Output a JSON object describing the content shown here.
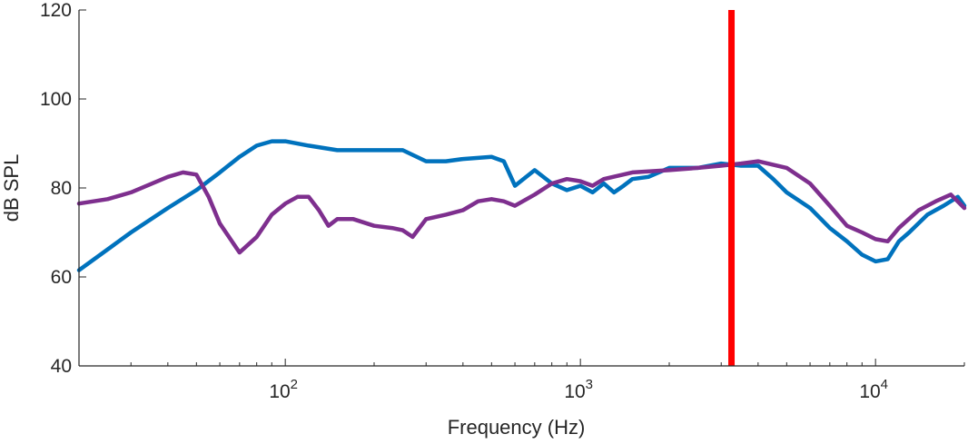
{
  "chart_data": {
    "type": "line",
    "title": "",
    "xlabel": "Frequency (Hz)",
    "ylabel": "dB SPL",
    "x_scale": "log",
    "xlim": [
      20,
      20000
    ],
    "ylim": [
      40,
      120
    ],
    "grid": false,
    "y_ticks": [
      40,
      60,
      80,
      100,
      120
    ],
    "x_ticks": [
      {
        "base": "10",
        "exp": "2",
        "value": 100
      },
      {
        "base": "10",
        "exp": "3",
        "value": 1000
      },
      {
        "base": "10",
        "exp": "4",
        "value": 10000
      }
    ],
    "series": [
      {
        "color": "#0072bd",
        "x": [
          20,
          30,
          40,
          50,
          60,
          70,
          80,
          90,
          100,
          120,
          150,
          200,
          250,
          300,
          350,
          400,
          500,
          550,
          600,
          700,
          800,
          900,
          1000,
          1100,
          1200,
          1300,
          1400,
          1500,
          1700,
          2000,
          2500,
          3000,
          3500,
          4000,
          4500,
          5000,
          6000,
          7000,
          8000,
          9000,
          10000,
          11000,
          12000,
          13000,
          15000,
          17000,
          19000,
          20000
        ],
        "y": [
          61.5,
          70,
          75.5,
          79.5,
          83.5,
          87,
          89.5,
          90.5,
          90.5,
          89.5,
          88.5,
          88.5,
          88.5,
          86,
          86,
          86.5,
          87,
          86,
          80.5,
          84,
          81,
          79.5,
          80.5,
          79,
          81,
          79,
          80.5,
          82,
          82.5,
          84.5,
          84.5,
          85.5,
          85,
          85,
          82,
          79,
          75.5,
          71,
          68,
          65,
          63.5,
          64,
          68,
          70,
          74,
          76,
          78,
          76
        ]
      },
      {
        "color": "#7e2f8e",
        "x": [
          20,
          25,
          30,
          40,
          45,
          50,
          55,
          60,
          70,
          80,
          90,
          100,
          110,
          120,
          130,
          140,
          150,
          170,
          200,
          230,
          250,
          270,
          300,
          350,
          400,
          450,
          500,
          550,
          600,
          700,
          800,
          900,
          1000,
          1100,
          1200,
          1500,
          2000,
          2500,
          3000,
          3500,
          4000,
          5000,
          6000,
          7000,
          8000,
          9000,
          10000,
          11000,
          12000,
          14000,
          16000,
          18000,
          20000
        ],
        "y": [
          76.5,
          77.5,
          79,
          82.5,
          83.5,
          83,
          78,
          72,
          65.5,
          69,
          74,
          76.5,
          78,
          78,
          75,
          71.5,
          73,
          73,
          71.5,
          71,
          70.5,
          69,
          73,
          74,
          75,
          77,
          77.5,
          77,
          76,
          78.5,
          81,
          82,
          81.5,
          80.5,
          82,
          83.5,
          84,
          84.5,
          85,
          85.5,
          86,
          84.5,
          81,
          76,
          71.5,
          70,
          68.5,
          68,
          71,
          75,
          77,
          78.5,
          75.5
        ]
      }
    ],
    "vertical_line": {
      "x": 3250,
      "color": "#ff0000"
    }
  }
}
